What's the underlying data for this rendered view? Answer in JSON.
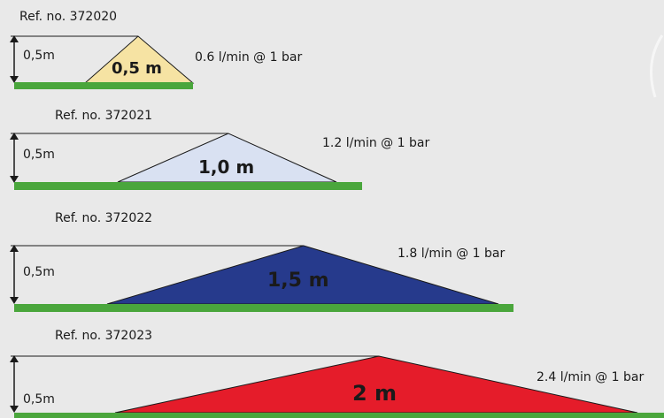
{
  "diagrams": [
    {
      "ref": "Ref. no. 372020",
      "height": "0,5m",
      "width": "0.5 m",
      "width_display": "0,5 m",
      "flow": "0.6 l/min @ 1 bar",
      "color": "#f6e3a3"
    },
    {
      "ref": "Ref. no. 372021",
      "height": "0,5m",
      "width": "1.0 m",
      "width_display": "1,0 m",
      "flow": "1.2 l/min @ 1 bar",
      "color": "#d9e1f2"
    },
    {
      "ref": "Ref. no. 372022",
      "height": "0,5m",
      "width": "1.5 m",
      "width_display": "1,5 m",
      "flow": "1.8 l/min @ 1 bar",
      "color": "#263a8c"
    },
    {
      "ref": "Ref. no. 372023",
      "height": "0,5m",
      "width": "2 m",
      "width_display": "2 m",
      "flow": "2.4 l/min @ 1 bar",
      "color": "#e51c2a"
    }
  ],
  "colors": {
    "ground": "#4aa63c",
    "outline": "#1a1a1a",
    "background": "#e9e9e9"
  }
}
